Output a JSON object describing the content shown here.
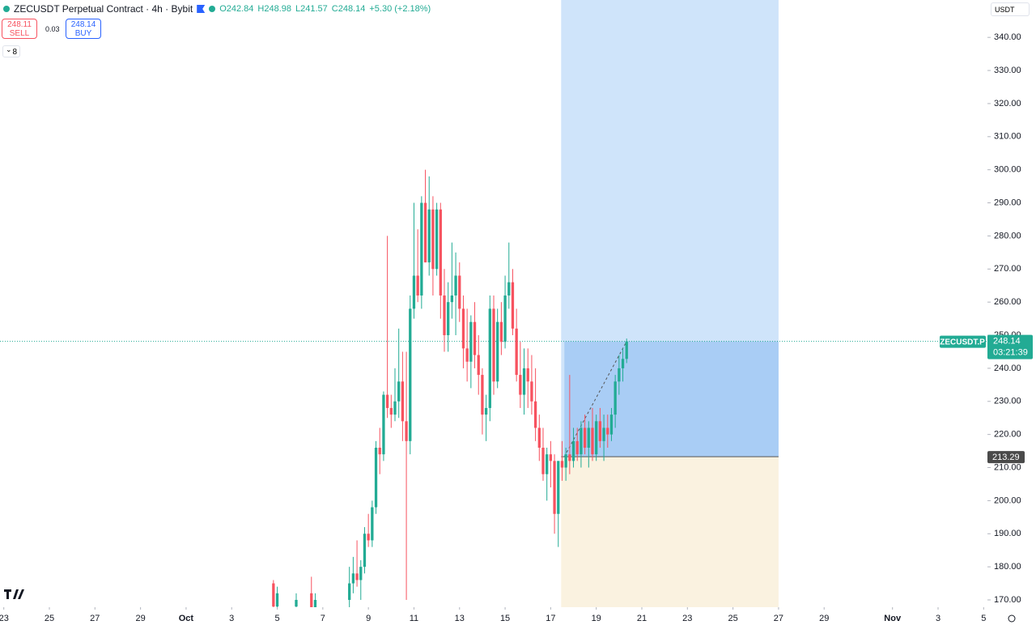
{
  "chart_data": {
    "type": "candlestick",
    "title": "ZECUSDT Perpetual Contract · 4h · Bybit",
    "legend_values": [
      "O242.84",
      "H248.98",
      "L241.57",
      "C248.14",
      "+5.30 (+2.18%)"
    ],
    "sell": {
      "price": "248.11",
      "label": "SELL"
    },
    "buy": {
      "price": "248.14",
      "label": "BUY"
    },
    "spread": "0.03",
    "indicators": "8",
    "currency": "USDT",
    "up_color": "#22ab94",
    "down_color": "#f7525f",
    "x": [
      284,
      288,
      308,
      324,
      328,
      364,
      368,
      372,
      376,
      380,
      384,
      388,
      392,
      396,
      400,
      404,
      408,
      412,
      416,
      420,
      424,
      428,
      432,
      436,
      440,
      444,
      448,
      452,
      456,
      460,
      464,
      468,
      472,
      476,
      480,
      484,
      488,
      492,
      496,
      500,
      504,
      508,
      512,
      516,
      520,
      524,
      528,
      532,
      536,
      540,
      544,
      548,
      552,
      556,
      560,
      564,
      568,
      572,
      576,
      580,
      584,
      588,
      592,
      596,
      600,
      604,
      608,
      612,
      616,
      620,
      624,
      628,
      632,
      636,
      640,
      644,
      648,
      652,
      656
    ],
    "open": [
      175,
      168,
      168,
      172,
      166,
      170,
      175,
      178,
      176,
      180,
      190,
      188,
      198,
      216,
      214,
      232,
      228,
      226,
      230,
      236,
      224,
      218,
      258,
      268,
      262,
      290,
      272,
      288,
      270,
      288,
      262,
      250,
      260,
      262,
      268,
      258,
      246,
      242,
      254,
      244,
      238,
      226,
      228,
      258,
      236,
      254,
      248,
      262,
      266,
      252,
      238,
      232,
      240,
      236,
      230,
      222,
      216,
      208,
      214,
      212,
      196,
      212,
      210,
      214,
      212,
      218,
      214,
      222,
      216,
      222,
      214,
      224,
      218,
      222,
      220,
      226,
      236,
      240,
      242.84
    ],
    "high": [
      176,
      174,
      172,
      177,
      172,
      180,
      183,
      188,
      182,
      192,
      196,
      200,
      218,
      222,
      233,
      280,
      232,
      240,
      252,
      245,
      245,
      262,
      290,
      282,
      292,
      300,
      298,
      292,
      290,
      290,
      270,
      266,
      278,
      275,
      272,
      262,
      258,
      256,
      260,
      250,
      240,
      232,
      262,
      262,
      258,
      260,
      268,
      278,
      270,
      258,
      248,
      246,
      246,
      244,
      240,
      226,
      222,
      216,
      218,
      214,
      212,
      218,
      216,
      238,
      222,
      222,
      224,
      226,
      224,
      228,
      226,
      228,
      226,
      226,
      228,
      238,
      244,
      246,
      248.98
    ],
    "low": [
      165,
      165,
      165,
      165,
      164,
      165,
      172,
      174,
      170,
      178,
      186,
      186,
      196,
      208,
      212,
      225,
      222,
      224,
      225,
      218,
      170,
      214,
      255,
      260,
      258,
      272,
      268,
      262,
      268,
      255,
      245,
      245,
      255,
      250,
      254,
      240,
      236,
      234,
      240,
      232,
      220,
      218,
      224,
      232,
      234,
      244,
      246,
      258,
      250,
      236,
      228,
      226,
      228,
      226,
      218,
      212,
      206,
      200,
      204,
      190,
      186,
      206,
      206,
      208,
      210,
      212,
      210,
      214,
      210,
      212,
      212,
      216,
      212,
      216,
      218,
      222,
      232,
      236,
      241.57
    ],
    "close": [
      168,
      172,
      170,
      166,
      170,
      175,
      178,
      176,
      180,
      190,
      188,
      198,
      216,
      214,
      232,
      228,
      226,
      230,
      236,
      224,
      218,
      258,
      268,
      262,
      290,
      272,
      288,
      270,
      288,
      262,
      250,
      260,
      262,
      268,
      258,
      246,
      242,
      254,
      244,
      238,
      226,
      228,
      258,
      236,
      254,
      248,
      262,
      266,
      252,
      238,
      232,
      240,
      236,
      230,
      222,
      216,
      208,
      214,
      212,
      196,
      212,
      210,
      214,
      212,
      218,
      214,
      222,
      216,
      222,
      214,
      224,
      218,
      222,
      220,
      226,
      236,
      240,
      242.84,
      248.14
    ],
    "xlim": [
      -4,
      1036
    ],
    "xticks": [
      {
        "value": 0,
        "label": "23"
      },
      {
        "value": 48,
        "label": "25"
      },
      {
        "value": 96,
        "label": "27"
      },
      {
        "value": 144,
        "label": "29"
      },
      {
        "value": 192,
        "label": "Oct"
      },
      {
        "value": 240,
        "label": "3"
      },
      {
        "value": 288,
        "label": "5"
      },
      {
        "value": 336,
        "label": "7"
      },
      {
        "value": 384,
        "label": "9"
      },
      {
        "value": 432,
        "label": "11"
      },
      {
        "value": 480,
        "label": "13"
      },
      {
        "value": 528,
        "label": "15"
      },
      {
        "value": 576,
        "label": "17"
      },
      {
        "value": 624,
        "label": "19"
      },
      {
        "value": 672,
        "label": "21"
      },
      {
        "value": 720,
        "label": "23"
      },
      {
        "value": 768,
        "label": "25"
      },
      {
        "value": 816,
        "label": "27"
      },
      {
        "value": 864,
        "label": "29"
      },
      {
        "value": 936,
        "label": "Nov"
      },
      {
        "value": 984,
        "label": "3"
      },
      {
        "value": 1032,
        "label": "5"
      }
    ],
    "ylim": [
      167.8,
      351.3
    ],
    "yticks": [
      {
        "value": 170,
        "label": "170.00"
      },
      {
        "value": 180,
        "label": "180.00"
      },
      {
        "value": 190,
        "label": "190.00"
      },
      {
        "value": 200,
        "label": "200.00"
      },
      {
        "value": 210,
        "label": "210.00"
      },
      {
        "value": 220,
        "label": "220.00"
      },
      {
        "value": 230,
        "label": "230.00"
      },
      {
        "value": 240,
        "label": "240.00"
      },
      {
        "value": 250,
        "label": "250.00"
      },
      {
        "value": 260,
        "label": "260.00"
      },
      {
        "value": 270,
        "label": "270.00"
      },
      {
        "value": 280,
        "label": "280.00"
      },
      {
        "value": 290,
        "label": "290.00"
      },
      {
        "value": 300,
        "label": "300.00"
      },
      {
        "value": 310,
        "label": "310.00"
      },
      {
        "value": 320,
        "label": "320.00"
      },
      {
        "value": 330,
        "label": "330.00"
      },
      {
        "value": 340,
        "label": "340.00"
      }
    ],
    "current_price": {
      "symbol": "ZECUSDT.P",
      "price": 248.14,
      "countdown": "03:21:39"
    },
    "position": {
      "entry": 213.29,
      "target": 351.3,
      "stop": 167.8,
      "x_start": 587,
      "x_end": 816,
      "target_color": "#cfe4fa",
      "filled_color": "#a9cdf5",
      "stop_color": "#faf2e0"
    }
  }
}
